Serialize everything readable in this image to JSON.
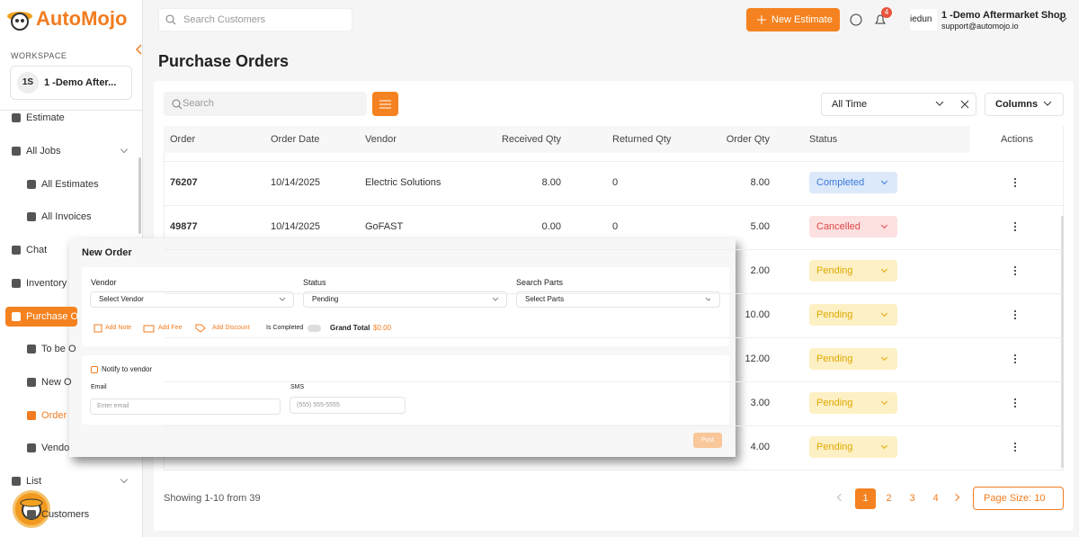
{
  "brand": "AutoMojo",
  "sidebar": {
    "workspace_label": "WORKSPACE",
    "workspace": {
      "initials": "1S",
      "name": "1 -Demo After..."
    },
    "nav": [
      "Estimate",
      "All Jobs",
      "All Estimates",
      "All Invoices",
      "Chat",
      "Inventory",
      "Purchase O",
      "To be O",
      "New O",
      "Order",
      "Vendo",
      "List",
      "Customers"
    ]
  },
  "topbar": {
    "search_placeholder": "Search Customers",
    "new_button": "New Estimate",
    "notifications": "4",
    "user_short": "iedun",
    "shop_name": "1 -Demo Aftermarket Shop",
    "email": "support@automojo.io"
  },
  "page": {
    "title": "Purchase Orders",
    "search_placeholder": "Search",
    "date_filter": "All Time",
    "columns_button": "Columns",
    "table": {
      "headers": [
        "Order",
        "Order Date",
        "Vendor",
        "Received Qty",
        "Returned Qty",
        "Order Qty",
        "Status",
        "Actions"
      ],
      "rows": [
        {
          "order": "76207",
          "order_date": "10/14/2025",
          "vendor": "Electric Solutions",
          "received_qty": "8.00",
          "returned_qty": "0",
          "order_qty": "8.00",
          "status": "Completed"
        },
        {
          "order": "49877",
          "order_date": "10/14/2025",
          "vendor": "GoFAST",
          "received_qty": "0.00",
          "returned_qty": "0",
          "order_qty": "5.00",
          "status": "Cancelled"
        },
        {
          "order_qty": "2.00",
          "status": "Pending"
        },
        {
          "order_qty": "10.00",
          "status": "Pending"
        },
        {
          "order_qty": "12.00",
          "status": "Pending"
        },
        {
          "order_qty": "3.00",
          "status": "Pending"
        },
        {
          "order_qty": "4.00",
          "status": "Pending"
        }
      ]
    },
    "footer": {
      "showing": "Showing 1-10 from 39",
      "pages": [
        "1",
        "2",
        "3",
        "4"
      ],
      "page_size": "Page Size: 10"
    }
  },
  "modal": {
    "title": "New Order",
    "vendor_label": "Vendor",
    "vendor_placeholder": "Select Vendor",
    "status_label": "Status",
    "status_value": "Pending",
    "parts_label": "Search Parts",
    "parts_placeholder": "Select Parts",
    "add_note": "Add Note",
    "add_fee": "Add Fee",
    "add_discount": "Add Discount",
    "is_completed": "Is Completed",
    "grand_total_label": "Grand Total",
    "grand_total": "$0.00",
    "notify": "Notify to vendor",
    "email_label": "Email",
    "email_placeholder": "Enter email",
    "sms_label": "SMS",
    "sms_placeholder": "(555) 555-5555",
    "post_button": "Post"
  }
}
